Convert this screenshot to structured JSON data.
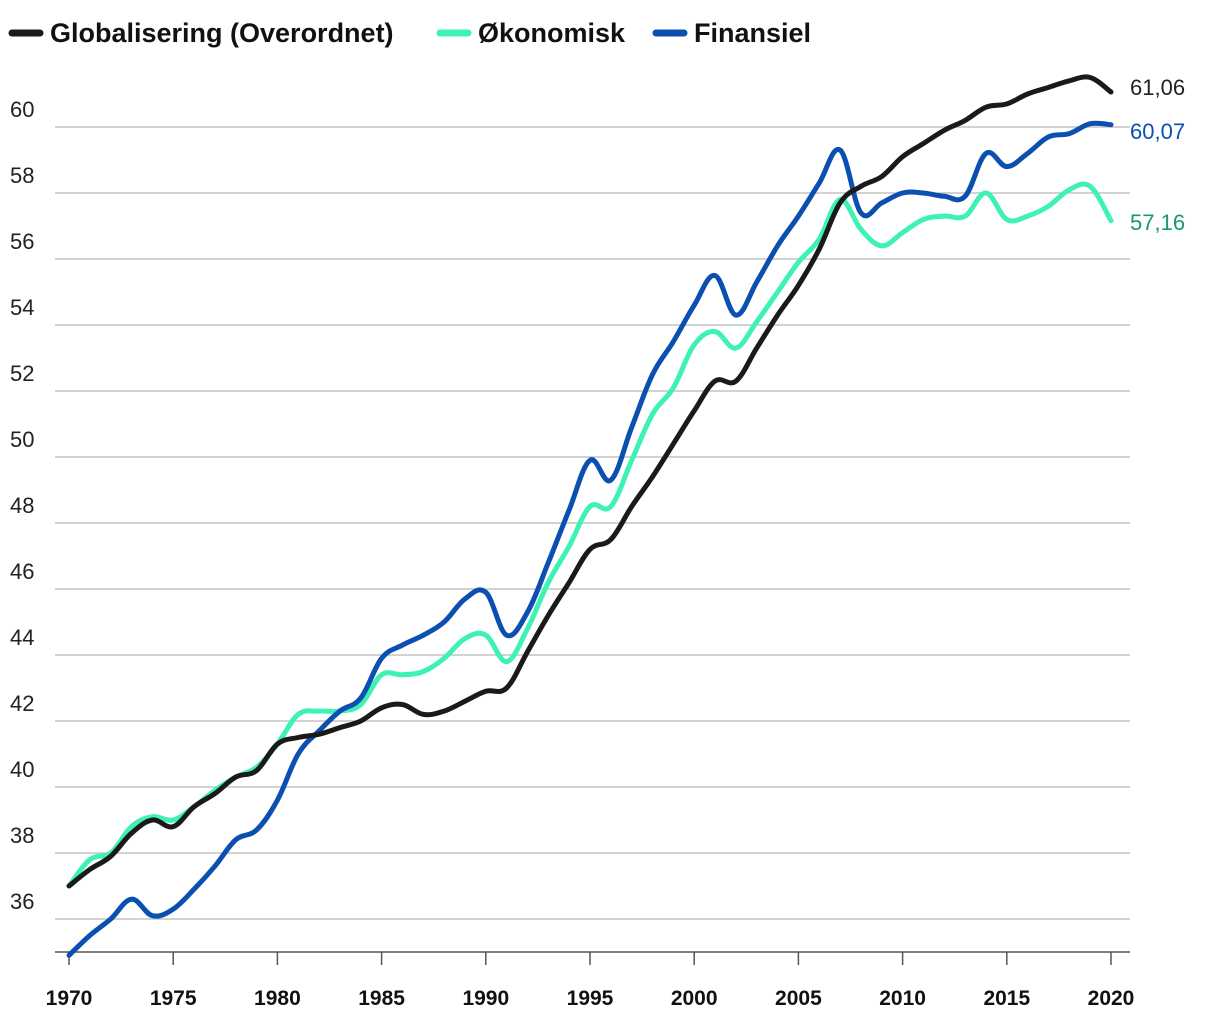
{
  "chart_data": {
    "type": "line",
    "title": "",
    "xlabel": "",
    "ylabel": "",
    "xlim": [
      1970,
      2020
    ],
    "ylim": [
      35,
      62
    ],
    "yticks": [
      36,
      38,
      40,
      42,
      44,
      46,
      48,
      50,
      52,
      54,
      56,
      58,
      60
    ],
    "xticks": [
      1970,
      1975,
      1980,
      1985,
      1990,
      1995,
      2000,
      2005,
      2010,
      2015,
      2020
    ],
    "grid": true,
    "legend_position": "top-left",
    "x": [
      1970,
      1971,
      1972,
      1973,
      1974,
      1975,
      1976,
      1977,
      1978,
      1979,
      1980,
      1981,
      1982,
      1983,
      1984,
      1985,
      1986,
      1987,
      1988,
      1989,
      1990,
      1991,
      1992,
      1993,
      1994,
      1995,
      1996,
      1997,
      1998,
      1999,
      2000,
      2001,
      2002,
      2003,
      2004,
      2005,
      2006,
      2007,
      2008,
      2009,
      2010,
      2011,
      2012,
      2013,
      2014,
      2015,
      2016,
      2017,
      2018,
      2019,
      2020
    ],
    "series": [
      {
        "name": "Globalisering (Overordnet)",
        "color": "#1a1a1a",
        "end_label": "61,06",
        "end_label_color": "#222222",
        "values": [
          37.0,
          37.5,
          37.9,
          38.6,
          39.0,
          38.8,
          39.4,
          39.8,
          40.3,
          40.5,
          41.3,
          41.5,
          41.6,
          41.8,
          42.0,
          42.4,
          42.5,
          42.2,
          42.3,
          42.6,
          42.9,
          43.0,
          44.1,
          45.2,
          46.2,
          47.2,
          47.5,
          48.5,
          49.4,
          50.4,
          51.4,
          52.3,
          52.3,
          53.3,
          54.3,
          55.2,
          56.3,
          57.7,
          58.2,
          58.5,
          59.1,
          59.5,
          59.9,
          60.2,
          60.6,
          60.7,
          61.0,
          61.2,
          61.4,
          61.5,
          61.06
        ]
      },
      {
        "name": "Økonomisk",
        "color": "#3df2b4",
        "end_label": "57,16",
        "end_label_color": "#1a9a6c",
        "values": [
          37.0,
          37.8,
          38.0,
          38.8,
          39.1,
          39.0,
          39.4,
          39.9,
          40.3,
          40.6,
          41.3,
          42.2,
          42.3,
          42.3,
          42.5,
          43.4,
          43.4,
          43.5,
          43.9,
          44.5,
          44.6,
          43.8,
          44.8,
          46.2,
          47.3,
          48.5,
          48.5,
          49.9,
          51.3,
          52.1,
          53.4,
          53.8,
          53.3,
          54.1,
          55.0,
          55.9,
          56.6,
          57.8,
          56.9,
          56.4,
          56.8,
          57.2,
          57.3,
          57.3,
          58.0,
          57.2,
          57.3,
          57.6,
          58.1,
          58.2,
          57.16
        ]
      },
      {
        "name": "Finansiel",
        "color": "#0b4fb0",
        "end_label": "60,07",
        "end_label_color": "#0b4fb0",
        "values": [
          34.9,
          35.5,
          36.0,
          36.6,
          36.1,
          36.3,
          36.9,
          37.6,
          38.4,
          38.7,
          39.6,
          41.0,
          41.7,
          42.3,
          42.7,
          43.9,
          44.3,
          44.6,
          45.0,
          45.7,
          45.9,
          44.6,
          45.3,
          46.8,
          48.4,
          49.9,
          49.3,
          50.9,
          52.5,
          53.5,
          54.6,
          55.5,
          54.3,
          55.3,
          56.4,
          57.3,
          58.3,
          59.3,
          57.4,
          57.7,
          58.0,
          58.0,
          57.9,
          57.9,
          59.2,
          58.8,
          59.2,
          59.7,
          59.8,
          60.1,
          60.07
        ]
      }
    ]
  }
}
